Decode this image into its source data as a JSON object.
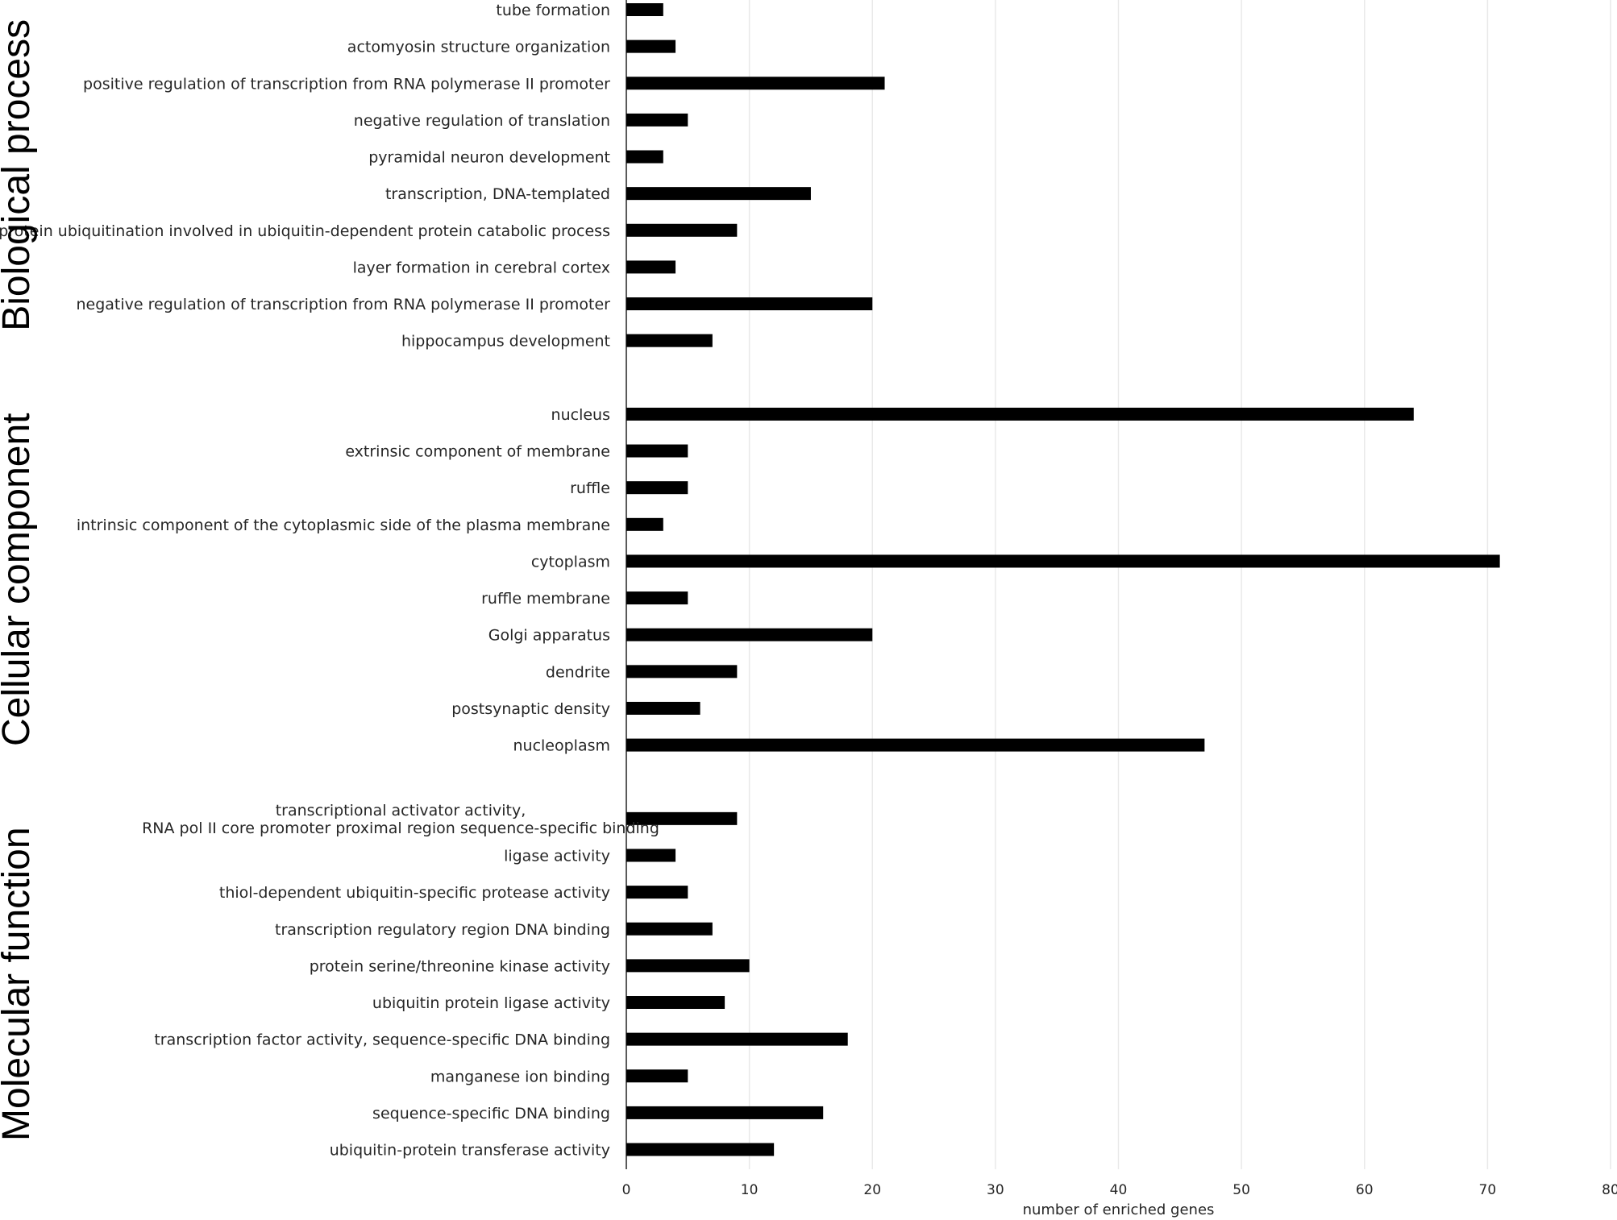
{
  "chart_data": {
    "type": "bar",
    "orientation": "horizontal",
    "xlabel": "number of enriched genes",
    "xlim": [
      0,
      80
    ],
    "xticks": [
      "0",
      "10",
      "20",
      "30",
      "40",
      "50",
      "60",
      "70",
      "80"
    ],
    "grid": "vertical",
    "bar_color": "#000000",
    "groups": [
      {
        "name": "Biological process",
        "categories": [
          "tube formation",
          "actomyosin structure organization",
          "positive regulation of transcription from RNA polymerase II promoter",
          "negative regulation of translation",
          "pyramidal neuron development",
          "transcription, DNA-templated",
          "protein ubiquitination involved in ubiquitin-dependent protein catabolic process",
          "layer formation in cerebral cortex",
          "negative regulation of transcription from RNA polymerase II promoter",
          "hippocampus development"
        ],
        "values": [
          3,
          4,
          21,
          5,
          3,
          15,
          9,
          4,
          20,
          7
        ]
      },
      {
        "name": "Cellular component",
        "categories": [
          "nucleus",
          "extrinsic component of membrane",
          "ruffle",
          "intrinsic component of the cytoplasmic side of the plasma membrane",
          "cytoplasm",
          "ruffle membrane",
          "Golgi apparatus",
          "dendrite",
          "postsynaptic density",
          "nucleoplasm"
        ],
        "values": [
          64,
          5,
          5,
          3,
          71,
          5,
          20,
          9,
          6,
          47
        ]
      },
      {
        "name": "Molecular function",
        "categories": [
          "transcriptional activator activity,\nRNA pol II core promoter proximal region sequence-specific binding",
          "ligase activity",
          "thiol-dependent ubiquitin-specific protease activity",
          "transcription regulatory region DNA binding",
          "protein serine/threonine kinase activity",
          "ubiquitin protein ligase activity",
          "transcription factor activity, sequence-specific DNA binding",
          "manganese ion binding",
          "sequence-specific DNA binding",
          "ubiquitin-protein transferase activity"
        ],
        "values": [
          9,
          4,
          5,
          7,
          10,
          8,
          18,
          5,
          16,
          12
        ]
      }
    ]
  }
}
